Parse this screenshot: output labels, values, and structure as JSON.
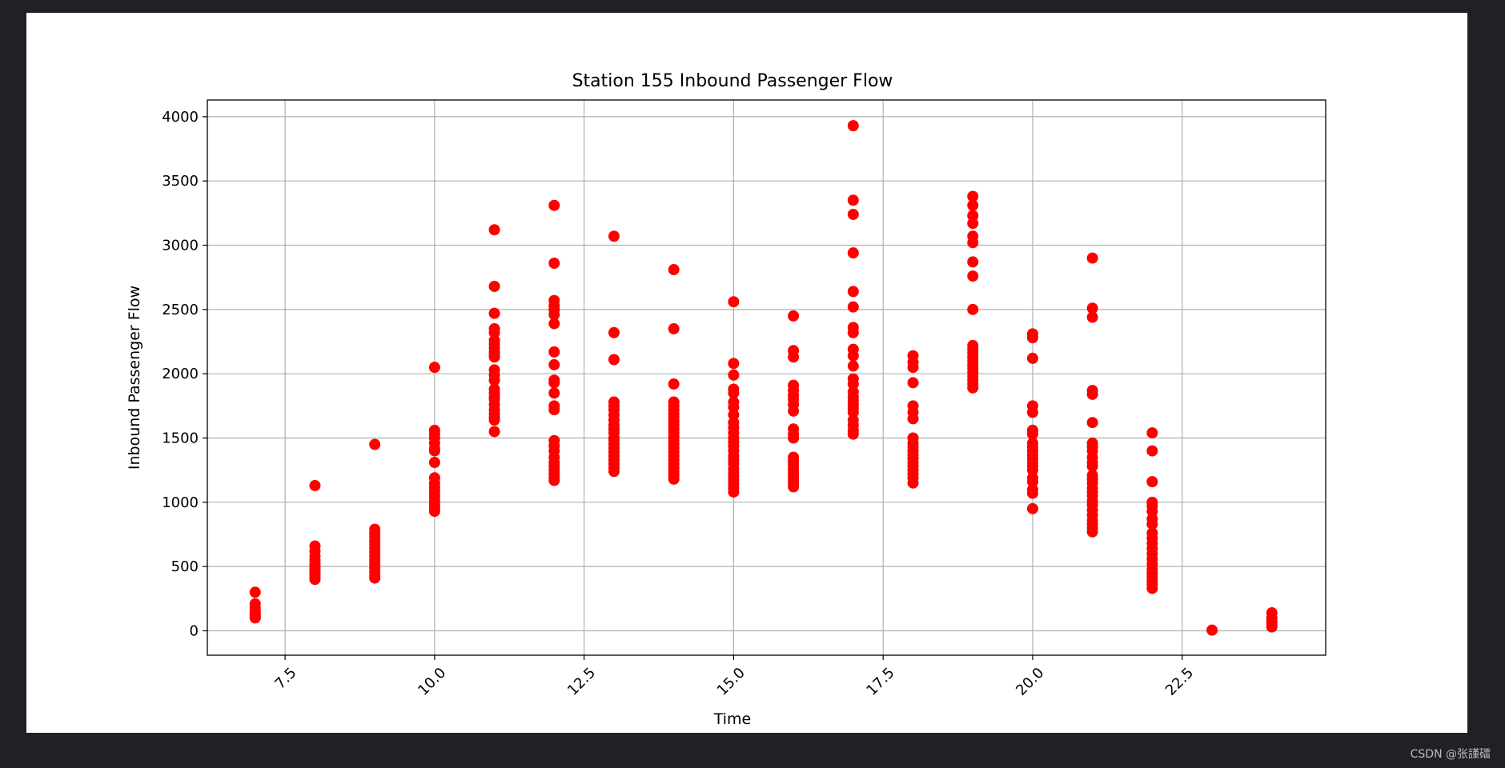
{
  "watermark": "CSDN @张謹礌",
  "chart_data": {
    "type": "scatter",
    "title": "Station 155 Inbound Passenger Flow",
    "xlabel": "Time",
    "ylabel": "Inbound Passenger Flow",
    "xlim": [
      6.2,
      24.9
    ],
    "ylim": [
      -190,
      4130
    ],
    "xticks": [
      7.5,
      10.0,
      12.5,
      15.0,
      17.5,
      20.0,
      22.5
    ],
    "xtick_labels": [
      "7.5",
      "10.0",
      "12.5",
      "15.0",
      "17.5",
      "20.0",
      "22.5"
    ],
    "yticks": [
      0,
      500,
      1000,
      1500,
      2000,
      2500,
      3000,
      3500,
      4000
    ],
    "ytick_labels": [
      "0",
      "500",
      "1000",
      "1500",
      "2000",
      "2500",
      "3000",
      "3500",
      "4000"
    ],
    "grid": true,
    "marker_color": "#ff0000",
    "points": [
      {
        "x": 7,
        "y": [
          300,
          210,
          180,
          160,
          145,
          130,
          120,
          110,
          100
        ]
      },
      {
        "x": 8,
        "y": [
          1130,
          660,
          620,
          580,
          550,
          520,
          500,
          480,
          460,
          440,
          420,
          400
        ]
      },
      {
        "x": 9,
        "y": [
          1450,
          790,
          760,
          730,
          700,
          670,
          640,
          610,
          580,
          550,
          520,
          490,
          460,
          430,
          410
        ]
      },
      {
        "x": 10,
        "y": [
          2050,
          1560,
          1530,
          1500,
          1460,
          1420,
          1400,
          1310,
          1190,
          1150,
          1120,
          1090,
          1060,
          1040,
          1010,
          980,
          950,
          930
        ]
      },
      {
        "x": 11,
        "y": [
          3120,
          2680,
          2470,
          2350,
          2320,
          2260,
          2230,
          2200,
          2170,
          2150,
          2130,
          2030,
          1990,
          1950,
          1880,
          1850,
          1820,
          1800,
          1760,
          1720,
          1690,
          1660,
          1640,
          1550
        ]
      },
      {
        "x": 12,
        "y": [
          3310,
          2860,
          2570,
          2530,
          2500,
          2460,
          2390,
          2170,
          2070,
          1950,
          1930,
          1850,
          1750,
          1720,
          1480,
          1440,
          1400,
          1350,
          1310,
          1280,
          1250,
          1220,
          1190,
          1170
        ]
      },
      {
        "x": 13,
        "y": [
          3070,
          2320,
          2110,
          1780,
          1750,
          1720,
          1680,
          1640,
          1600,
          1570,
          1540,
          1500,
          1480,
          1450,
          1420,
          1390,
          1360,
          1330,
          1300,
          1270,
          1240
        ]
      },
      {
        "x": 14,
        "y": [
          2810,
          2350,
          1920,
          1780,
          1750,
          1720,
          1690,
          1660,
          1630,
          1600,
          1570,
          1540,
          1510,
          1480,
          1450,
          1420,
          1390,
          1360,
          1330,
          1300,
          1270,
          1240,
          1210,
          1180
        ]
      },
      {
        "x": 15,
        "y": [
          2560,
          2080,
          1990,
          1880,
          1850,
          1780,
          1740,
          1680,
          1620,
          1580,
          1540,
          1500,
          1470,
          1440,
          1400,
          1360,
          1330,
          1300,
          1260,
          1230,
          1200,
          1170,
          1140,
          1110,
          1080
        ]
      },
      {
        "x": 16,
        "y": [
          2450,
          2180,
          2130,
          1910,
          1870,
          1830,
          1800,
          1760,
          1710,
          1570,
          1530,
          1500,
          1350,
          1320,
          1290,
          1260,
          1230,
          1200,
          1170,
          1140,
          1120
        ]
      },
      {
        "x": 17,
        "y": [
          3930,
          3350,
          3240,
          2940,
          2640,
          2520,
          2360,
          2320,
          2190,
          2140,
          2060,
          1960,
          1920,
          1860,
          1820,
          1790,
          1760,
          1730,
          1700,
          1640,
          1600,
          1560,
          1530
        ]
      },
      {
        "x": 18,
        "y": [
          2140,
          2090,
          2050,
          1930,
          1750,
          1700,
          1650,
          1500,
          1460,
          1430,
          1400,
          1370,
          1340,
          1310,
          1280,
          1250,
          1220,
          1190,
          1150
        ]
      },
      {
        "x": 19,
        "y": [
          3380,
          3310,
          3230,
          3170,
          3070,
          3020,
          2870,
          2760,
          2500,
          2220,
          2190,
          2160,
          2130,
          2100,
          2070,
          2040,
          2010,
          1980,
          1950,
          1920,
          1890
        ]
      },
      {
        "x": 20,
        "y": [
          2310,
          2280,
          2120,
          1750,
          1700,
          1560,
          1530,
          1460,
          1430,
          1400,
          1370,
          1340,
          1310,
          1280,
          1250,
          1190,
          1160,
          1100,
          1070,
          950
        ]
      },
      {
        "x": 21,
        "y": [
          2900,
          2510,
          2440,
          1870,
          1840,
          1620,
          1460,
          1430,
          1400,
          1350,
          1310,
          1280,
          1210,
          1180,
          1150,
          1110,
          1080,
          1050,
          1010,
          980,
          940,
          900,
          860,
          830,
          800,
          770
        ]
      },
      {
        "x": 22,
        "y": [
          1540,
          1400,
          1160,
          1000,
          970,
          930,
          870,
          830,
          760,
          720,
          680,
          640,
          600,
          560,
          520,
          480,
          450,
          420,
          390,
          360,
          330
        ]
      },
      {
        "x": 23,
        "y": [
          5
        ]
      },
      {
        "x": 24,
        "y": [
          140,
          100,
          70,
          50,
          30
        ]
      }
    ]
  }
}
